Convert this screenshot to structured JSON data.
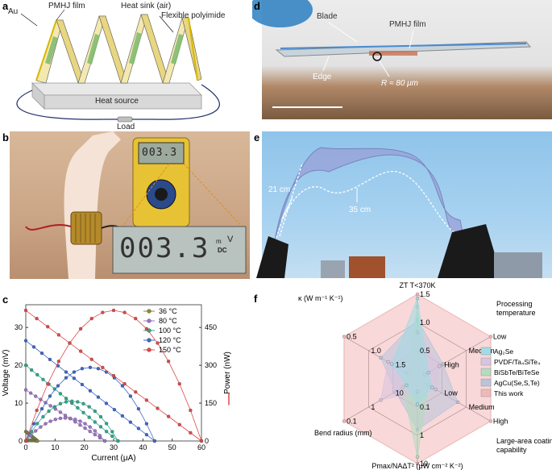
{
  "panels": {
    "a": {
      "label": "a",
      "au": "Au",
      "pmhj": "PMHJ film",
      "heat_sink": "Heat sink (air)",
      "polyimide": "Flexible polyimide",
      "heat_source": "Heat source",
      "load": "Load"
    },
    "b": {
      "label": "b",
      "display_small": "003.3",
      "display_large": "003.3",
      "unit_v": "V",
      "unit_m": "m",
      "unit_dc": "DC"
    },
    "c": {
      "label": "c"
    },
    "d": {
      "label": "d",
      "blade": "Blade",
      "pmhj": "PMHJ film",
      "edge": "Edge",
      "radius": "R ≈ 80 μm"
    },
    "e": {
      "label": "e",
      "w21": "21 cm",
      "w35": "35 cm"
    },
    "f": {
      "label": "f"
    }
  },
  "chart_data": [
    {
      "type": "line",
      "panel": "c",
      "xlabel": "Current (μA)",
      "ylabel": "Voltage (mV)",
      "y2label": "Power (nW)",
      "xlim": [
        0,
        60
      ],
      "ylim": [
        0,
        36
      ],
      "y2lim": [
        0,
        540
      ],
      "xticks": [
        0,
        10,
        20,
        30,
        40,
        50,
        60
      ],
      "yticks": [
        0,
        10,
        20,
        30
      ],
      "y2ticks": [
        0,
        150,
        300,
        450
      ],
      "legend_position": "top-right",
      "series": [
        {
          "name": "36 °C",
          "color": "#8a8a3c",
          "voc": 2.5,
          "isc": 4.0
        },
        {
          "name": "80 °C",
          "color": "#9b74c8",
          "voc": 13.5,
          "isc": 27.0
        },
        {
          "name": "100 °C",
          "color": "#2aa88c",
          "voc": 20.0,
          "isc": 31.5
        },
        {
          "name": "120 °C",
          "color": "#3a66c8",
          "voc": 26.5,
          "isc": 44.0
        },
        {
          "name": "150 °C",
          "color": "#e04848",
          "voc": 34.5,
          "isc": 60.0
        }
      ]
    },
    {
      "type": "radar",
      "panel": "f",
      "axes": [
        {
          "name": "ZT",
          "sub": "T<370K",
          "ticks": [
            "1.5",
            "1.0",
            "0.5"
          ]
        },
        {
          "name": "Processing temperature",
          "ticks": [
            "Low",
            "Medium",
            "High"
          ]
        },
        {
          "name": "Large-area coating capability",
          "ticks": [
            "High",
            "Medium",
            "Low"
          ]
        },
        {
          "name": "Pmax/NAΔT² (μW cm⁻² K⁻²)",
          "ticks": [
            "10",
            "1",
            "0.1"
          ]
        },
        {
          "name": "Bend radius (mm)",
          "ticks": [
            "0.1",
            "1",
            "10"
          ]
        },
        {
          "name": "κ (W m⁻¹ K⁻¹)",
          "ticks": [
            "0.5",
            "1.0",
            "1.5"
          ]
        }
      ],
      "series": [
        {
          "name": "Ag₂Se",
          "color": "#9fdde6",
          "values": [
            0.95,
            0.15,
            0.2,
            0.3,
            0.15,
            0.35
          ]
        },
        {
          "name": "PVDF/Ta₄SiTe₄",
          "color": "#d9c4e0",
          "values": [
            0.55,
            0.3,
            0.25,
            0.15,
            0.5,
            0.4
          ]
        },
        {
          "name": "BiSbTe/BiTeSe",
          "color": "#b4dcc0",
          "values": [
            0.85,
            0.1,
            0.15,
            0.92,
            0.2,
            0.15
          ]
        },
        {
          "name": "AgCu(Se,S,Te)",
          "color": "#b9c4dc",
          "values": [
            0.7,
            0.35,
            0.55,
            0.6,
            0.3,
            0.5
          ]
        },
        {
          "name": "This work",
          "color": "#f2b8b8",
          "values": [
            1.0,
            1.0,
            1.0,
            1.0,
            1.0,
            1.0
          ]
        }
      ]
    }
  ]
}
